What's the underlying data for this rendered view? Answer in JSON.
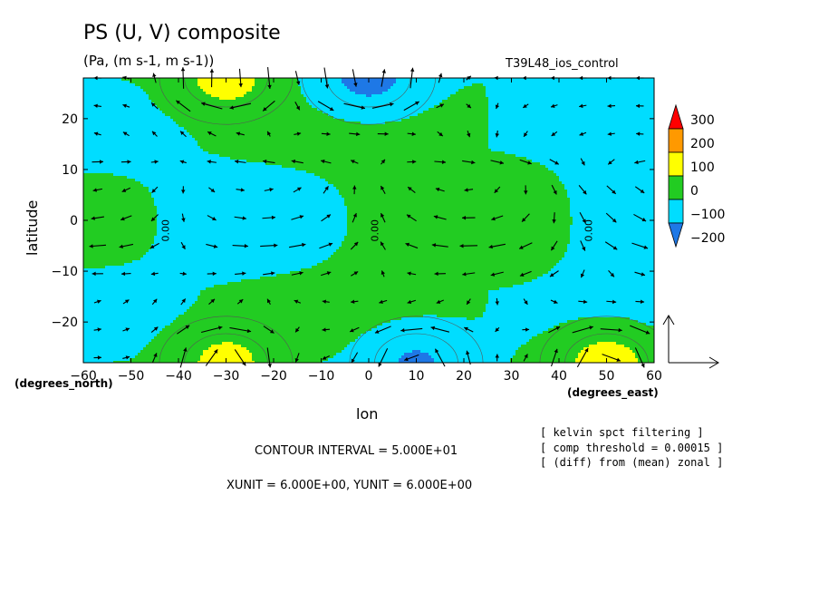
{
  "header": {
    "title": "PS (U, V) composite",
    "units": "(Pa, (m s-1, m s-1))",
    "run": "T39L48_ios_control"
  },
  "notes": [
    "[ kelvin spct filtering ]",
    "[ comp threshold = 0.00015 ]",
    "[ (diff) from (mean) zonal ]"
  ],
  "footer": {
    "contour_interval": "CONTOUR INTERVAL = 5.000E+01",
    "units_line": "XUNIT = 6.000E+00, YUNIT = 6.000E+00"
  },
  "chart_data": {
    "type": "heatmap",
    "title": "PS (U, V) composite",
    "subtitle": "(Pa, (m s-1, m s-1))",
    "xlabel": "lon",
    "ylabel": "latitude",
    "x_unit_label": "(degrees_east)",
    "y_unit_label": "(degrees_north)",
    "xlim": [
      -60,
      60
    ],
    "ylim": [
      -28,
      28
    ],
    "x_ticks": [
      -60,
      -50,
      -40,
      -30,
      -20,
      -10,
      0,
      10,
      20,
      30,
      40,
      50,
      60
    ],
    "x_tick_labels": [
      "−60",
      "−50",
      "−40",
      "−30",
      "−20",
      "−10",
      "0",
      "10",
      "20",
      "30",
      "40",
      "50",
      "60"
    ],
    "y_ticks": [
      -20,
      -10,
      0,
      10,
      20
    ],
    "y_tick_labels": [
      "−20",
      "−10",
      "0",
      "10",
      "20"
    ],
    "contour_interval": 50,
    "contour_labels": [
      {
        "lon": -42,
        "lat": -2,
        "text": "0.00"
      },
      {
        "lon": 2,
        "lat": -2,
        "text": "0.00"
      },
      {
        "lon": 47,
        "lat": -2,
        "text": "0.00"
      }
    ],
    "colorbar": {
      "levels": [
        -200,
        -100,
        0,
        100,
        200,
        300
      ],
      "labels": [
        "300",
        "200",
        "100",
        "0",
        "−100",
        "−200"
      ],
      "colors": [
        "#1e78e6",
        "#00ddff",
        "#22cc22",
        "#ffff00",
        "#ff9900",
        "#ff0000"
      ]
    },
    "field_features": [
      {
        "type": "high",
        "lon": -30,
        "lat": 28,
        "peak": 160
      },
      {
        "type": "low",
        "lon": 0,
        "lat": 28,
        "peak": -150
      },
      {
        "type": "high",
        "lon": -30,
        "lat": -28,
        "peak": 150
      },
      {
        "type": "low",
        "lon": 10,
        "lat": -28,
        "peak": -120
      },
      {
        "type": "high",
        "lon": 50,
        "lat": -28,
        "peak": 170
      }
    ],
    "reference_vector": {
      "xunit": 6.0,
      "yunit": 6.0
    }
  }
}
